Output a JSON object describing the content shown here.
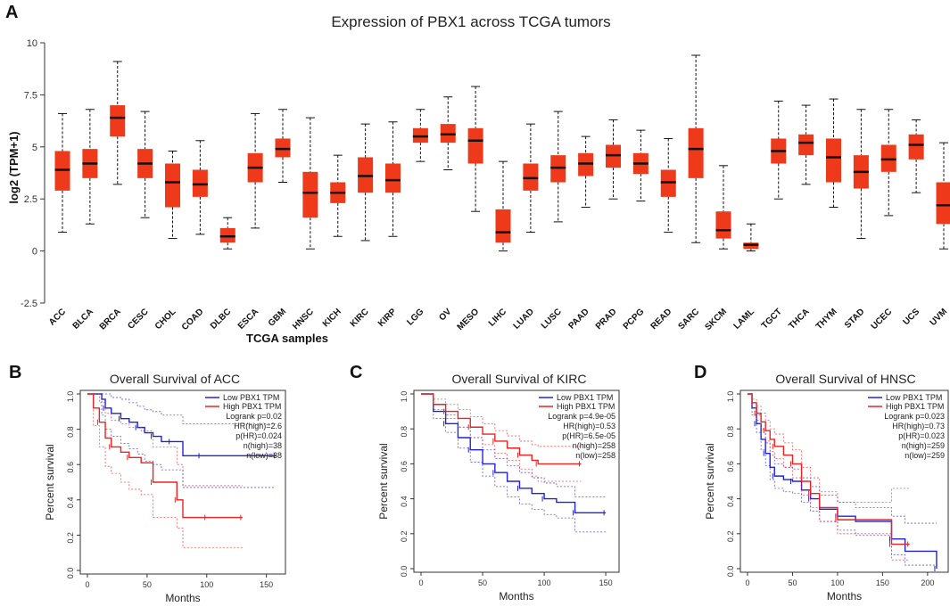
{
  "panel_labels": {
    "a": "A",
    "b": "B",
    "c": "C",
    "d": "D"
  },
  "colors": {
    "box": "#ee3a1a",
    "median": "#111111",
    "low": "#2222dd",
    "high": "#ee2222"
  },
  "chart_data": [
    {
      "type": "box",
      "title": "Expression of PBX1 across TCGA tumors",
      "xlabel": "TCGA samples",
      "ylabel": "log2 (TPM+1)",
      "ylim": [
        -2.5,
        10
      ],
      "yticks": [
        "-2.5",
        "0",
        "2.5",
        "5",
        "7.5",
        "10"
      ],
      "categories": [
        "ACC",
        "BLCA",
        "BRCA",
        "CESC",
        "CHOL",
        "COAD",
        "DLBC",
        "ESCA",
        "GBM",
        "HNSC",
        "KICH",
        "KIRC",
        "KIRP",
        "LGG",
        "OV",
        "MESO",
        "LIHC",
        "LUAD",
        "LUSC",
        "PAAD",
        "PRAD",
        "PCPG",
        "READ",
        "SARC",
        "SKCM",
        "LAML",
        "TGCT",
        "THCA",
        "THYM",
        "STAD",
        "UCEC",
        "UCS",
        "UVM"
      ],
      "boxes": [
        {
          "min": 0.9,
          "q1": 2.9,
          "median": 3.9,
          "q3": 4.8,
          "max": 6.6
        },
        {
          "min": 1.3,
          "q1": 3.5,
          "median": 4.2,
          "q3": 4.9,
          "max": 6.8
        },
        {
          "min": 3.2,
          "q1": 5.5,
          "median": 6.4,
          "q3": 7.0,
          "max": 9.1
        },
        {
          "min": 1.6,
          "q1": 3.5,
          "median": 4.2,
          "q3": 4.9,
          "max": 6.7
        },
        {
          "min": 0.6,
          "q1": 2.1,
          "median": 3.3,
          "q3": 4.2,
          "max": 4.8
        },
        {
          "min": 0.8,
          "q1": 2.6,
          "median": 3.2,
          "q3": 3.9,
          "max": 5.3
        },
        {
          "min": 0.1,
          "q1": 0.4,
          "median": 0.7,
          "q3": 1.1,
          "max": 1.6
        },
        {
          "min": 1.1,
          "q1": 3.3,
          "median": 4.0,
          "q3": 4.7,
          "max": 6.6
        },
        {
          "min": 3.3,
          "q1": 4.5,
          "median": 4.9,
          "q3": 5.4,
          "max": 6.8
        },
        {
          "min": 0.1,
          "q1": 1.6,
          "median": 2.8,
          "q3": 3.8,
          "max": 6.4
        },
        {
          "min": 0.7,
          "q1": 2.3,
          "median": 2.8,
          "q3": 3.3,
          "max": 4.6
        },
        {
          "min": 0.5,
          "q1": 2.8,
          "median": 3.6,
          "q3": 4.5,
          "max": 6.1
        },
        {
          "min": 0.7,
          "q1": 2.8,
          "median": 3.4,
          "q3": 4.2,
          "max": 6.2
        },
        {
          "min": 4.3,
          "q1": 5.2,
          "median": 5.5,
          "q3": 5.9,
          "max": 6.8
        },
        {
          "min": 3.9,
          "q1": 5.2,
          "median": 5.6,
          "q3": 6.1,
          "max": 7.4
        },
        {
          "min": 1.9,
          "q1": 4.2,
          "median": 5.3,
          "q3": 5.9,
          "max": 7.9
        },
        {
          "min": 0.0,
          "q1": 0.4,
          "median": 0.9,
          "q3": 2.0,
          "max": 4.3
        },
        {
          "min": 0.9,
          "q1": 2.9,
          "median": 3.5,
          "q3": 4.2,
          "max": 6.1
        },
        {
          "min": 1.4,
          "q1": 3.3,
          "median": 4.0,
          "q3": 4.6,
          "max": 6.7
        },
        {
          "min": 2.1,
          "q1": 3.6,
          "median": 4.2,
          "q3": 4.7,
          "max": 5.5
        },
        {
          "min": 2.5,
          "q1": 4.0,
          "median": 4.6,
          "q3": 5.1,
          "max": 6.3
        },
        {
          "min": 2.4,
          "q1": 3.7,
          "median": 4.2,
          "q3": 4.7,
          "max": 5.8
        },
        {
          "min": 0.9,
          "q1": 2.6,
          "median": 3.3,
          "q3": 3.9,
          "max": 5.4
        },
        {
          "min": 0.4,
          "q1": 3.5,
          "median": 4.9,
          "q3": 5.9,
          "max": 9.4
        },
        {
          "min": 0.1,
          "q1": 0.6,
          "median": 1.0,
          "q3": 1.9,
          "max": 4.1
        },
        {
          "min": 0.0,
          "q1": 0.1,
          "median": 0.3,
          "q3": 0.4,
          "max": 1.3
        },
        {
          "min": 2.5,
          "q1": 4.2,
          "median": 4.8,
          "q3": 5.4,
          "max": 7.2
        },
        {
          "min": 3.2,
          "q1": 4.6,
          "median": 5.2,
          "q3": 5.6,
          "max": 7.0
        },
        {
          "min": 2.1,
          "q1": 3.3,
          "median": 4.5,
          "q3": 5.4,
          "max": 7.3
        },
        {
          "min": 0.6,
          "q1": 3.0,
          "median": 3.8,
          "q3": 4.6,
          "max": 6.8
        },
        {
          "min": 1.7,
          "q1": 3.8,
          "median": 4.4,
          "q3": 5.1,
          "max": 6.8
        },
        {
          "min": 2.8,
          "q1": 4.4,
          "median": 5.1,
          "q3": 5.6,
          "max": 6.3
        },
        {
          "min": 0.1,
          "q1": 1.3,
          "median": 2.2,
          "q3": 3.3,
          "max": 5.2
        }
      ]
    },
    {
      "type": "line",
      "subtype": "kaplan-meier",
      "title": "Overall Survival of ACC",
      "xlabel": "Months",
      "ylabel": "Percent survival",
      "xlim": [
        0,
        160
      ],
      "ylim": [
        0,
        1
      ],
      "xticks": [
        "0",
        "50",
        "100",
        "150"
      ],
      "yticks": [
        "0.0",
        "0.2",
        "0.4",
        "0.6",
        "0.8",
        "1.0"
      ],
      "legend": [
        "Low PBX1 TPM",
        "High PBX1 TPM"
      ],
      "stats": [
        "Logrank p=0.02",
        "HR(high)=2.6",
        "p(HR)=0.024",
        "n(high)=38",
        "n(low)=38"
      ],
      "series": [
        {
          "name": "Low PBX1 TPM",
          "x": [
            0,
            12,
            15,
            20,
            28,
            35,
            42,
            48,
            55,
            62,
            70,
            80,
            95,
            120,
            158
          ],
          "y": [
            1.0,
            0.97,
            0.92,
            0.89,
            0.86,
            0.84,
            0.81,
            0.78,
            0.76,
            0.73,
            0.73,
            0.65,
            0.65,
            0.65,
            0.65
          ],
          "upper": [
            1.0,
            1.0,
            1.0,
            0.98,
            0.97,
            0.95,
            0.93,
            0.91,
            0.9,
            0.88,
            0.88,
            0.83,
            0.83,
            0.83,
            0.83
          ],
          "lower": [
            1.0,
            0.88,
            0.8,
            0.76,
            0.72,
            0.69,
            0.66,
            0.62,
            0.6,
            0.57,
            0.57,
            0.47,
            0.47,
            0.47,
            0.47
          ]
        },
        {
          "name": "High PBX1 TPM",
          "x": [
            0,
            5,
            10,
            15,
            20,
            28,
            35,
            45,
            55,
            62,
            75,
            80,
            100,
            130
          ],
          "y": [
            1.0,
            0.92,
            0.84,
            0.75,
            0.7,
            0.67,
            0.64,
            0.61,
            0.5,
            0.5,
            0.4,
            0.3,
            0.3,
            0.3
          ],
          "upper": [
            1.0,
            1.0,
            0.95,
            0.89,
            0.85,
            0.83,
            0.81,
            0.79,
            0.7,
            0.7,
            0.6,
            0.48,
            0.48,
            0.48
          ],
          "lower": [
            1.0,
            0.82,
            0.7,
            0.59,
            0.55,
            0.5,
            0.46,
            0.43,
            0.3,
            0.3,
            0.24,
            0.13,
            0.13,
            0.13
          ]
        }
      ]
    },
    {
      "type": "line",
      "subtype": "kaplan-meier",
      "title": "Overall Survival of KIRC",
      "xlabel": "Months",
      "ylabel": "Percent survival",
      "xlim": [
        0,
        155
      ],
      "ylim": [
        0,
        1
      ],
      "xticks": [
        "0",
        "50",
        "100",
        "150"
      ],
      "yticks": [
        "0.0",
        "0.2",
        "0.4",
        "0.6",
        "0.8",
        "1.0"
      ],
      "legend": [
        "Low PBX1 TPM",
        "High PBX1 TPM"
      ],
      "stats": [
        "Logrank p=4.9e-05",
        "HR(high)=0.53",
        "p(HR)=6.5e-05",
        "n(high)=258",
        "n(low)=258"
      ],
      "series": [
        {
          "name": "Low PBX1 TPM",
          "x": [
            0,
            10,
            20,
            30,
            40,
            50,
            60,
            70,
            80,
            90,
            100,
            110,
            125,
            140,
            150
          ],
          "y": [
            1.0,
            0.9,
            0.83,
            0.75,
            0.68,
            0.6,
            0.55,
            0.5,
            0.46,
            0.43,
            0.4,
            0.38,
            0.32,
            0.32,
            0.32
          ],
          "upper": [
            1.0,
            0.94,
            0.88,
            0.81,
            0.75,
            0.68,
            0.63,
            0.59,
            0.55,
            0.52,
            0.49,
            0.47,
            0.41,
            0.41,
            0.41
          ],
          "lower": [
            1.0,
            0.86,
            0.78,
            0.69,
            0.61,
            0.53,
            0.47,
            0.41,
            0.37,
            0.34,
            0.31,
            0.29,
            0.21,
            0.21,
            0.21
          ]
        },
        {
          "name": "High PBX1 TPM",
          "x": [
            0,
            10,
            20,
            30,
            40,
            50,
            60,
            70,
            80,
            90,
            95,
            110,
            130
          ],
          "y": [
            1.0,
            0.94,
            0.9,
            0.86,
            0.81,
            0.77,
            0.73,
            0.69,
            0.65,
            0.62,
            0.6,
            0.6,
            0.6
          ],
          "upper": [
            1.0,
            0.97,
            0.94,
            0.91,
            0.87,
            0.83,
            0.79,
            0.76,
            0.73,
            0.71,
            0.7,
            0.7,
            0.7
          ],
          "lower": [
            1.0,
            0.91,
            0.86,
            0.81,
            0.75,
            0.71,
            0.66,
            0.62,
            0.57,
            0.53,
            0.5,
            0.5,
            0.5
          ]
        }
      ]
    },
    {
      "type": "line",
      "subtype": "kaplan-meier",
      "title": "Overall Survival of HNSC",
      "xlabel": "Months",
      "ylabel": "Percent survival",
      "xlim": [
        0,
        215
      ],
      "ylim": [
        0,
        1
      ],
      "xticks": [
        "0",
        "50",
        "100",
        "150",
        "200"
      ],
      "yticks": [
        "0.0",
        "0.2",
        "0.4",
        "0.6",
        "0.8",
        "1.0"
      ],
      "legend": [
        "Low PBX1 TPM",
        "High PBX1 TPM"
      ],
      "stats": [
        "Logrank p=0.023",
        "HR(high)=0.73",
        "p(HR)=0.023",
        "n(high)=259",
        "n(low)=259"
      ],
      "series": [
        {
          "name": "Low PBX1 TPM",
          "x": [
            0,
            5,
            10,
            15,
            20,
            25,
            30,
            40,
            50,
            60,
            70,
            80,
            100,
            120,
            160,
            175,
            210
          ],
          "y": [
            1.0,
            0.92,
            0.83,
            0.74,
            0.66,
            0.58,
            0.53,
            0.51,
            0.5,
            0.45,
            0.4,
            0.34,
            0.3,
            0.27,
            0.17,
            0.1,
            0.0
          ],
          "upper": [
            1.0,
            0.95,
            0.88,
            0.8,
            0.72,
            0.65,
            0.6,
            0.58,
            0.57,
            0.52,
            0.47,
            0.42,
            0.38,
            0.35,
            0.3,
            0.26,
            0.26
          ],
          "lower": [
            1.0,
            0.88,
            0.78,
            0.68,
            0.59,
            0.51,
            0.46,
            0.44,
            0.43,
            0.38,
            0.33,
            0.27,
            0.22,
            0.19,
            0.08,
            0.02,
            0.0
          ]
        },
        {
          "name": "High PBX1 TPM",
          "x": [
            0,
            5,
            10,
            15,
            20,
            25,
            30,
            40,
            50,
            60,
            70,
            80,
            100,
            120,
            160,
            180
          ],
          "y": [
            1.0,
            0.95,
            0.89,
            0.84,
            0.79,
            0.74,
            0.7,
            0.65,
            0.6,
            0.5,
            0.43,
            0.35,
            0.28,
            0.28,
            0.14,
            0.14
          ],
          "upper": [
            1.0,
            0.97,
            0.93,
            0.89,
            0.85,
            0.8,
            0.77,
            0.72,
            0.68,
            0.58,
            0.52,
            0.44,
            0.38,
            0.38,
            0.46,
            0.46
          ],
          "lower": [
            1.0,
            0.92,
            0.85,
            0.79,
            0.73,
            0.67,
            0.63,
            0.58,
            0.52,
            0.42,
            0.35,
            0.27,
            0.2,
            0.2,
            0.05,
            0.05
          ]
        }
      ]
    }
  ]
}
